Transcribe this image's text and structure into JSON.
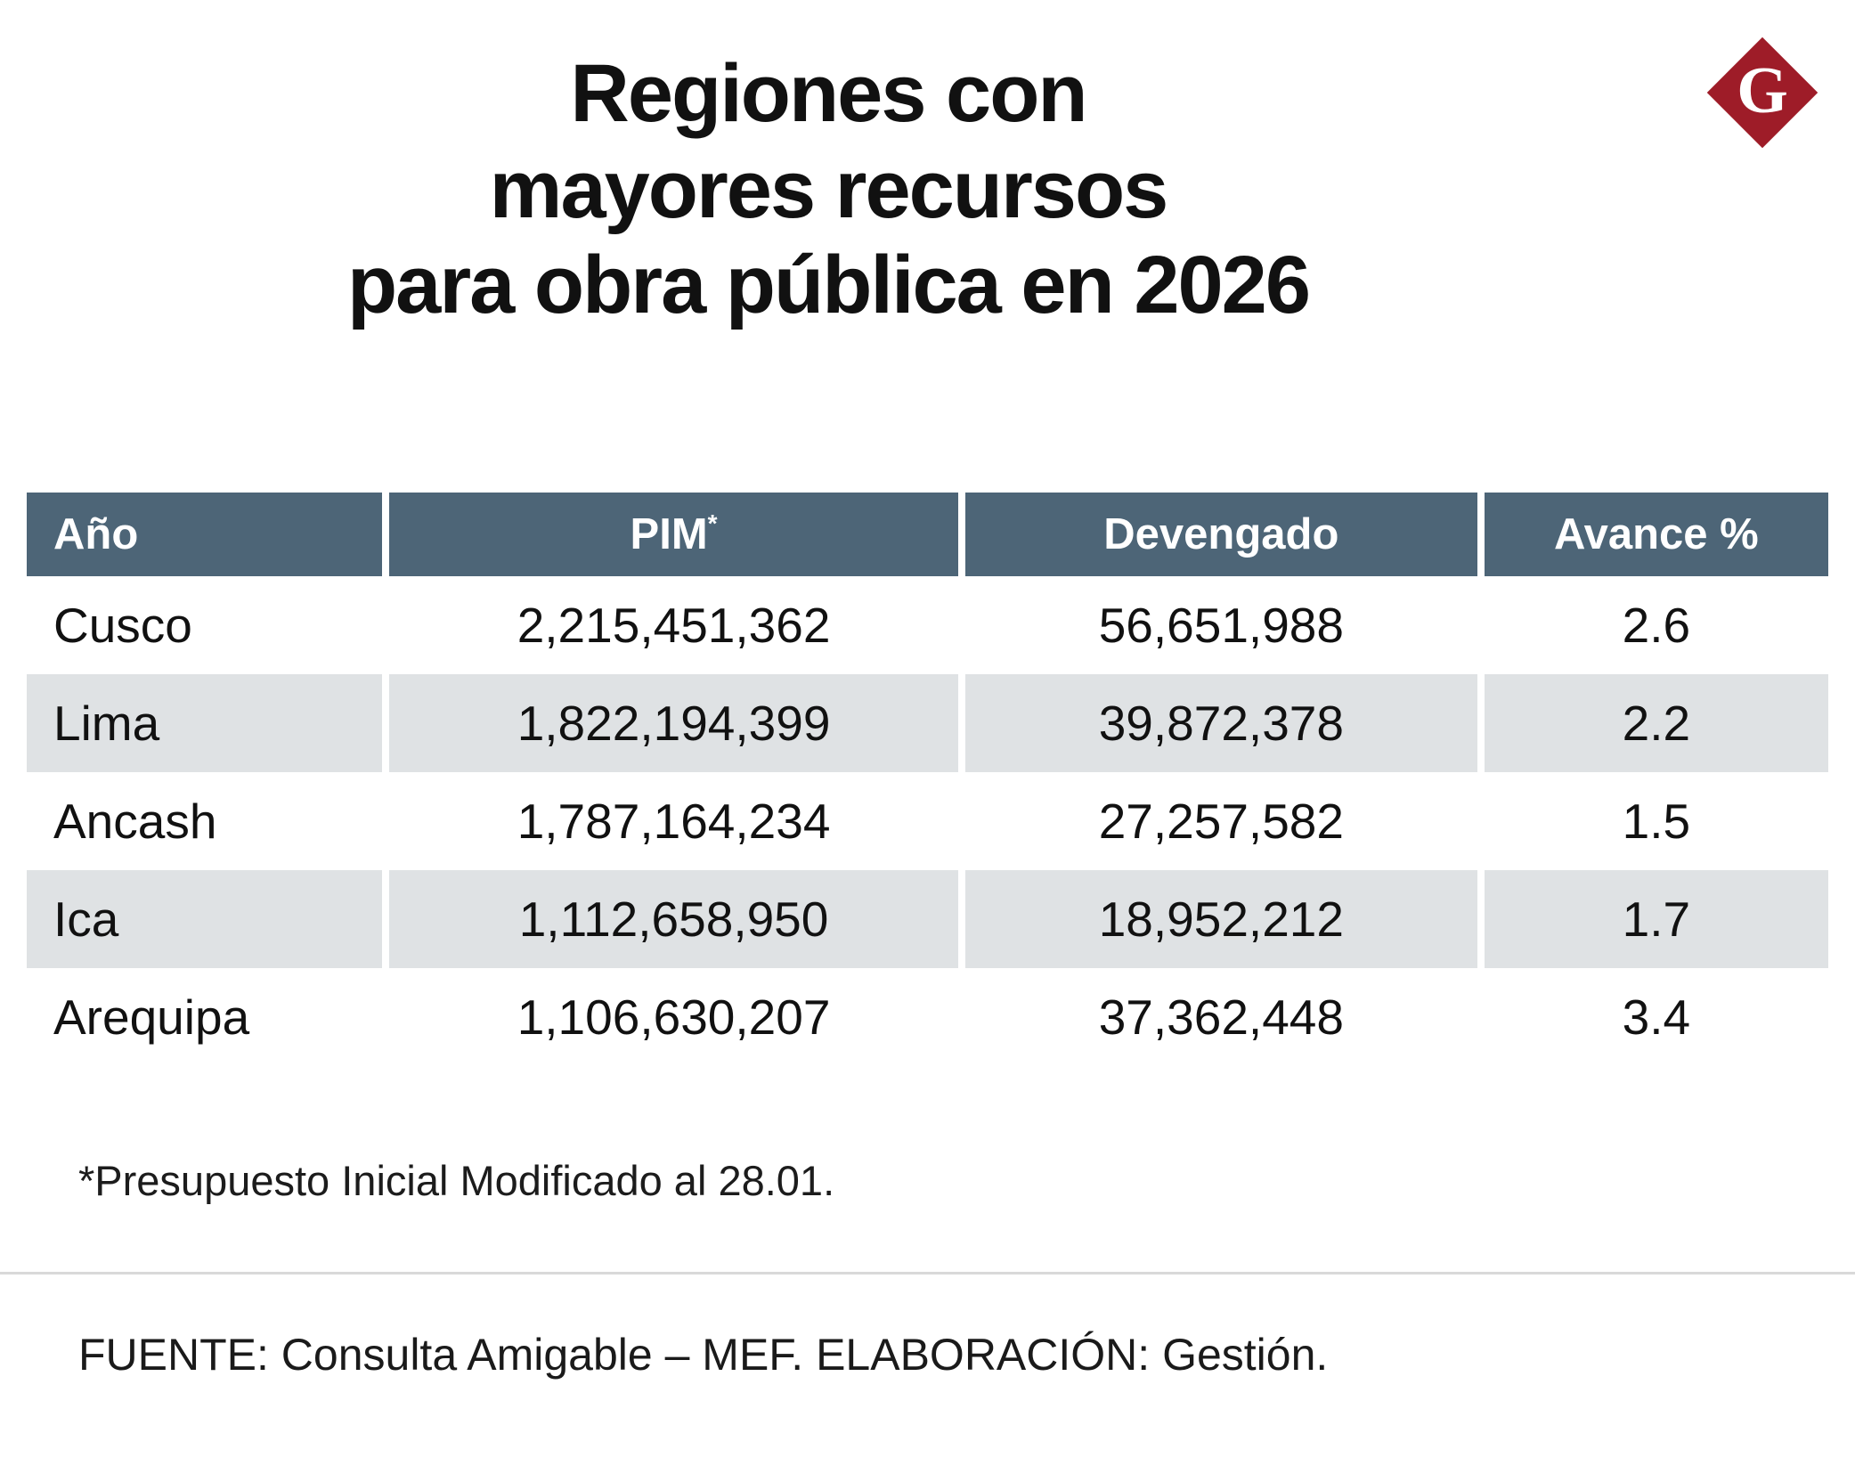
{
  "colors": {
    "header_bg": "#4d6577",
    "row_alt_bg": "#dfe2e4",
    "logo_red": "#9e1c28"
  },
  "title": {
    "lines": [
      "Regiones con",
      "mayores recursos",
      "para obra pública en 2026"
    ]
  },
  "logo": {
    "letter": "G"
  },
  "header_pim": {
    "base": "PIM",
    "sup": "*"
  },
  "chart_data": {
    "type": "table",
    "title": "Regiones con mayores recursos para obra pública en 2026",
    "columns": [
      "Año",
      "PIM*",
      "Devengado",
      "Avance %"
    ],
    "rows": [
      [
        "Cusco",
        "2,215,451,362",
        "56,651,988",
        "2.6"
      ],
      [
        "Lima",
        "1,822,194,399",
        "39,872,378",
        "2.2"
      ],
      [
        "Ancash",
        "1,787,164,234",
        "27,257,582",
        "1.5"
      ],
      [
        "Ica",
        "1,112,658,950",
        "18,952,212",
        "1.7"
      ],
      [
        "Arequipa",
        "1,106,630,207",
        "37,362,448",
        "3.4"
      ]
    ],
    "footnote": "*Presupuesto Inicial Modificado al 28.01.",
    "source": "FUENTE: Consulta Amigable – MEF. ELABORACIÓN: Gestión."
  }
}
